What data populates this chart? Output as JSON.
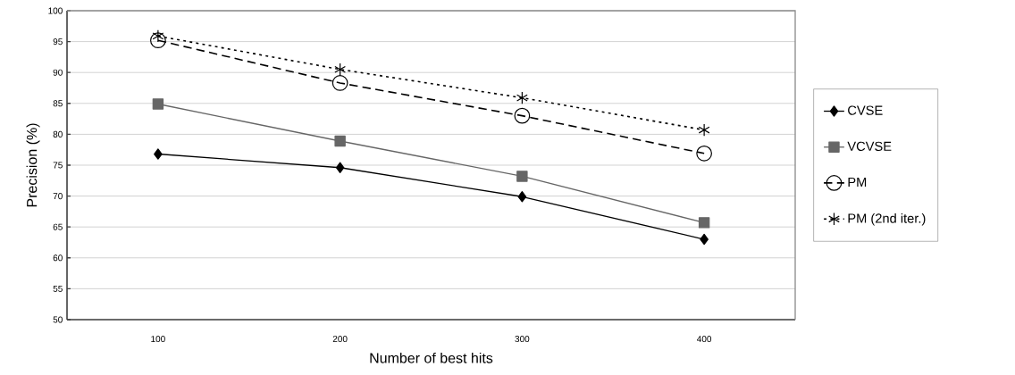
{
  "chart_data": {
    "type": "line",
    "xlabel": "Number of best hits",
    "ylabel": "Precision (%)",
    "categories": [
      "100",
      "200",
      "300",
      "400"
    ],
    "series": [
      {
        "name": "CVSE",
        "color": "#000000",
        "marker": "diamond",
        "line_style": "solid",
        "values": [
          76.8,
          74.6,
          69.9,
          63.0
        ]
      },
      {
        "name": "VCVSE",
        "color": "#666666",
        "marker": "square",
        "line_style": "solid",
        "values": [
          84.9,
          78.9,
          73.2,
          65.7
        ]
      },
      {
        "name": "PM",
        "color": "#000000",
        "marker": "circle",
        "line_style": "dashed",
        "values": [
          95.2,
          88.3,
          83.0,
          76.9
        ]
      },
      {
        "name": "PM (2nd iter.)",
        "color": "#000000",
        "marker": "cross",
        "line_style": "dotted",
        "values": [
          95.9,
          90.5,
          85.9,
          80.7
        ]
      }
    ],
    "ylim": [
      50,
      100
    ],
    "yticks": [
      50,
      55,
      60,
      65,
      70,
      75,
      80,
      85,
      90,
      95,
      100
    ],
    "grid": "y",
    "legend": "right"
  }
}
